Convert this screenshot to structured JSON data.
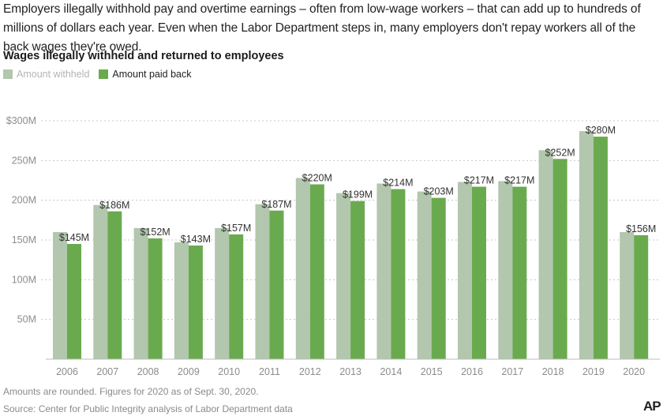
{
  "intro": "Employers illegally withhold pay and overtime earnings – often from low-wage workers – that can add up to hundreds of millions of dollars each year. Even when the Labor Department steps in, many employers don't repay workers all of the back wages they're owed.",
  "colors": {
    "withheld": "#b2c7ad",
    "paid": "#6aaa4f",
    "grid": "#c8c8c8"
  },
  "legend": {
    "withheld": "Amount withheld",
    "paid": "Amount paid back"
  },
  "footnote": "Amounts are rounded. Figures for 2020 as of Sept. 30, 2020.",
  "source": "Source: Center for Public Integrity analysis of Labor Department data",
  "logo": "AP",
  "chart_data": {
    "type": "bar",
    "title": "Wages illegally withheld and returned to employees",
    "categories": [
      "2006",
      "2007",
      "2008",
      "2009",
      "2010",
      "2011",
      "2012",
      "2013",
      "2014",
      "2015",
      "2016",
      "2017",
      "2018",
      "2019",
      "2020"
    ],
    "series": [
      {
        "name": "Amount withheld",
        "values": [
          160,
          194,
          165,
          147,
          165,
          195,
          228,
          209,
          221,
          211,
          223,
          224,
          263,
          287,
          160
        ]
      },
      {
        "name": "Amount paid back",
        "values": [
          145,
          186,
          152,
          143,
          157,
          187,
          220,
          199,
          214,
          203,
          217,
          217,
          252,
          280,
          156
        ]
      }
    ],
    "data_labels": [
      "$145M",
      "$186M",
      "$152M",
      "$143M",
      "$157M",
      "$187M",
      "$220M",
      "$199M",
      "$214M",
      "$203M",
      "$217M",
      "$217M",
      "$252M",
      "$280M",
      "$156M"
    ],
    "y_ticks": [
      {
        "value": 300,
        "label": "$300M"
      },
      {
        "value": 250,
        "label": "250M"
      },
      {
        "value": 200,
        "label": "200M"
      },
      {
        "value": 150,
        "label": "150M"
      },
      {
        "value": 100,
        "label": "100M"
      },
      {
        "value": 50,
        "label": "50M"
      }
    ],
    "ylim": [
      0,
      300
    ],
    "grid": true,
    "legend_position": "top-left"
  }
}
